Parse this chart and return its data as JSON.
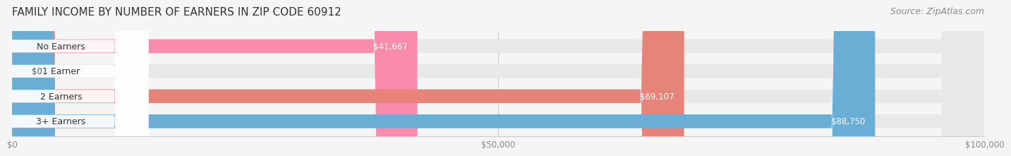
{
  "title": "FAMILY INCOME BY NUMBER OF EARNERS IN ZIP CODE 60912",
  "source": "Source: ZipAtlas.com",
  "categories": [
    "No Earners",
    "1 Earner",
    "2 Earners",
    "3+ Earners"
  ],
  "values": [
    41667,
    0,
    69107,
    88750
  ],
  "bar_colors": [
    "#F98BAB",
    "#F5C890",
    "#E8837A",
    "#6AADD5"
  ],
  "label_colors": [
    "#F98BAB",
    "#F5C890",
    "#E8837A",
    "#6AADD5"
  ],
  "value_labels": [
    "$41,667",
    "$0",
    "$69,107",
    "$88,750"
  ],
  "value_label_colors": [
    "white",
    "#555555",
    "white",
    "white"
  ],
  "xlim": [
    0,
    100000
  ],
  "xticks": [
    0,
    50000,
    100000
  ],
  "xtick_labels": [
    "$0",
    "$50,000",
    "$100,000"
  ],
  "bar_height": 0.55,
  "background_color": "#f5f5f5",
  "bar_background_color": "#e8e8e8",
  "title_fontsize": 11,
  "source_fontsize": 9,
  "label_fontsize": 9,
  "value_fontsize": 8.5
}
